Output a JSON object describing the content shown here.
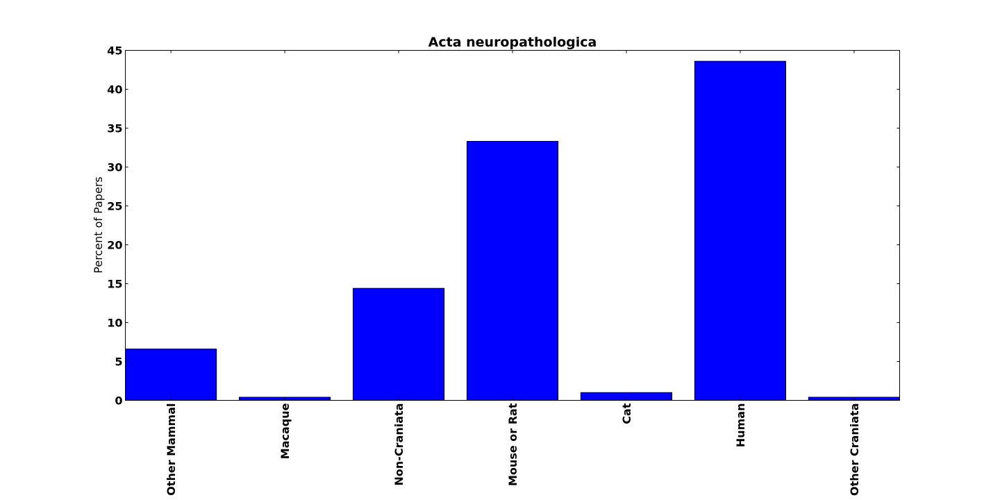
{
  "chart_data": {
    "type": "bar",
    "title": "Acta neuropathologica",
    "xlabel": "",
    "ylabel": "Percent of Papers",
    "categories": [
      "Other Mammal",
      "Macaque",
      "Non-Craniata",
      "Mouse or Rat",
      "Cat",
      "Human",
      "Other Craniata"
    ],
    "values": [
      6.6,
      0.4,
      14.4,
      33.3,
      1.0,
      43.6,
      0.4
    ],
    "ylim": [
      0,
      45
    ],
    "yticks": [
      0,
      5,
      10,
      15,
      20,
      25,
      30,
      35,
      40,
      45
    ],
    "ytick_labels": [
      "0",
      "5",
      "10",
      "15",
      "20",
      "25",
      "30",
      "35",
      "40",
      "45"
    ],
    "bar_color": "#0000ff",
    "edge_color": "#000000",
    "grid": false,
    "legend": "none"
  }
}
